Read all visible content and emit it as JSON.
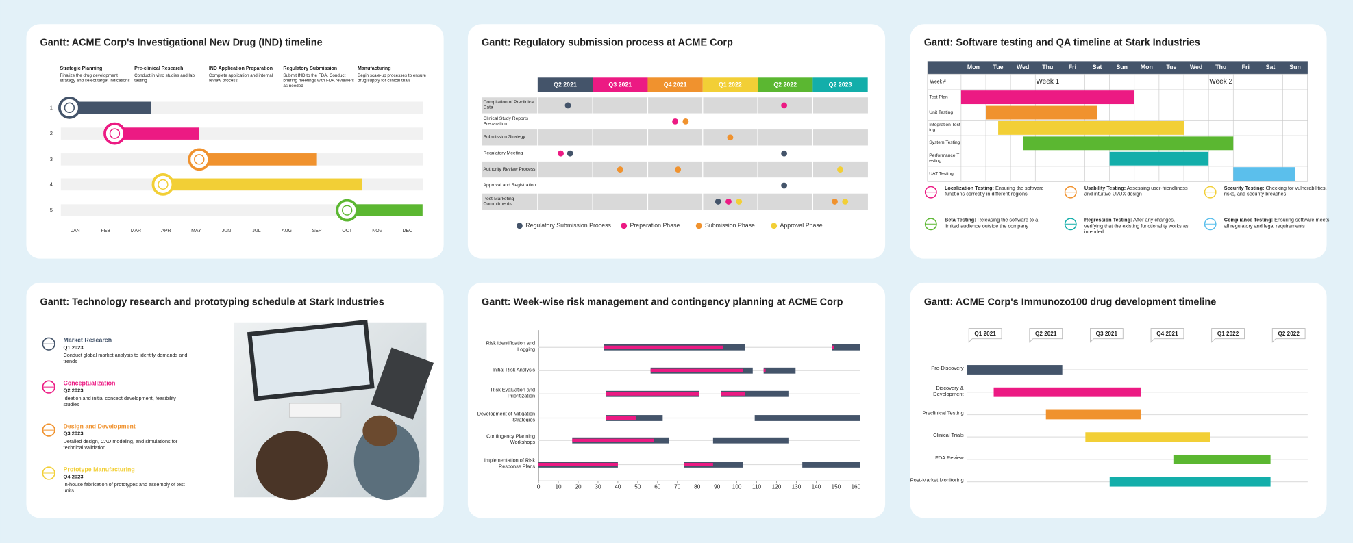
{
  "ind": {
    "title": "Gantt: ACME Corp's Investigational New Drug (IND) timeline",
    "phases": [
      {
        "title": "Strategic Planning",
        "desc": "Finalize the drug development strategy and select target indications"
      },
      {
        "title": "Pre-clinical Research",
        "desc": "Conduct in vitro studies and lab testing"
      },
      {
        "title": "IND Application Preparation",
        "desc": "Complete application and internal review process"
      },
      {
        "title": "Regulatory Submission",
        "desc": "Submit IND to the FDA. Conduct briefing meetings with FDA reviewers as needed"
      },
      {
        "title": "Manufacturing",
        "desc": "Begin scale-up processes to ensure drug supply for clinical trials"
      }
    ],
    "rows": [
      1,
      2,
      3,
      4,
      5
    ],
    "months": [
      "JAN",
      "FEB",
      "MAR",
      "APR",
      "MAY",
      "JUN",
      "JUL",
      "AUG",
      "SEP",
      "OCT",
      "NOV",
      "DEC"
    ],
    "bars": [
      {
        "start": -0.2,
        "end": 2.5
      },
      {
        "start": 1.3,
        "end": 4.1
      },
      {
        "start": 4.1,
        "end": 8
      },
      {
        "start": 2.9,
        "end": 9.5
      },
      {
        "start": 9,
        "end": 11.5
      }
    ],
    "colors": [
      "#44546a",
      "#ec1a83",
      "#f0922e",
      "#f2cf36",
      "#5bb731"
    ]
  },
  "regulatory": {
    "title": "Gantt: Regulatory submission process at ACME Corp",
    "quarters": [
      "Q2 2021",
      "Q3 2021",
      "Q4 2021",
      "Q1 2022",
      "Q2 2022",
      "Q2 2023"
    ],
    "quarter_colors": [
      "#44546a",
      "#ec1a83",
      "#f0922e",
      "#f2cf36",
      "#5bb731",
      "#13aeaa"
    ],
    "tasks": [
      "Compilation of Preclinical Data",
      "Clinical Study Reports Preparation",
      "Submission Strategy",
      "Regulatory Meeting",
      "Authority Review Process",
      "Approval and Registration",
      "Post-Marketing Commitments"
    ],
    "series": [
      {
        "name": "Regulatory Submission Process",
        "color": "#44546a",
        "values": [
          [
            0.55
          ],
          [],
          [],
          [
            0.59,
            4.48
          ],
          [],
          [
            4.48
          ],
          [
            3.28
          ]
        ]
      },
      {
        "name": "Preparation Phase",
        "color": "#ec1a83",
        "values": [
          [
            4.48
          ],
          [
            2.5
          ],
          [],
          [
            0.42
          ],
          [],
          [],
          [
            3.47
          ]
        ]
      },
      {
        "name": "Submission Phase",
        "color": "#f0922e",
        "values": [
          [],
          [
            2.69
          ],
          [
            3.5
          ],
          [],
          [
            1.5,
            2.55
          ],
          [],
          [
            5.4
          ]
        ]
      },
      {
        "name": "Approval Phase",
        "color": "#f2cf36",
        "values": [
          [],
          [],
          [],
          [],
          [
            5.5
          ],
          [],
          [
            3.66,
            5.59
          ]
        ]
      }
    ]
  },
  "testing": {
    "title": "Gantt: Software testing and QA timeline at Stark Industries",
    "days": [
      "Mon",
      "Tue",
      "Wed",
      "Thu",
      "Fri",
      "Sat",
      "Sun",
      "Mon",
      "Tue",
      "Wed",
      "Thu",
      "Fri",
      "Sat",
      "Sun"
    ],
    "week_label": "Week #",
    "weeks": [
      "Week 1",
      "Week 2"
    ],
    "tasks": [
      "Test Plan",
      "Unit Testing",
      "Integration Testing",
      "System Testing",
      "Performance Testing",
      "UAT Testing"
    ],
    "bars": [
      {
        "start": 0,
        "end": 7
      },
      {
        "start": 1,
        "end": 5.5
      },
      {
        "start": 1.5,
        "end": 9
      },
      {
        "start": 2.5,
        "end": 11
      },
      {
        "start": 6,
        "end": 10
      },
      {
        "start": 11,
        "end": 13.5
      }
    ],
    "colors": [
      "#ec1a83",
      "#f0922e",
      "#f2cf36",
      "#5bb731",
      "#13aeaa",
      "#5bbfec"
    ],
    "legend": [
      {
        "title": "Localization Testing:",
        "desc": "Ensuring the software functions correctly in different regions",
        "color": "#ec1a83"
      },
      {
        "title": "Usability Testing:",
        "desc": "Assessing user-friendliness and intuitive UI/UX design",
        "color": "#f0922e"
      },
      {
        "title": "Security Testing:",
        "desc": "Checking for vulnerabilities, risks, and security breaches",
        "color": "#f2cf36"
      },
      {
        "title": "Beta Testing:",
        "desc": "Releasing the software to a limited audience outside the company",
        "color": "#5bb731"
      },
      {
        "title": "Regression Testing:",
        "desc": "After any changes, verifying that the existing functionality works as intended",
        "color": "#13aeaa"
      },
      {
        "title": "Compliance Testing:",
        "desc": "Ensuring software meets all regulatory and legal requirements",
        "color": "#5bbfec"
      }
    ]
  },
  "research": {
    "title": "Gantt: Technology research and prototyping schedule at Stark Industries",
    "items": [
      {
        "title": "Market Research",
        "quarter": "Q1 2023",
        "desc": "Conduct global market analysis to identify demands and trends",
        "color": "#44546a"
      },
      {
        "title": "Conceptualization",
        "quarter": "Q2 2023",
        "desc": "Ideation and initial concept development, feasibility studies",
        "color": "#ec1a83"
      },
      {
        "title": "Design and Development",
        "quarter": "Q3 2023",
        "desc": "Detailed design, CAD modeling, and simulations for technical validation",
        "color": "#f0922e"
      },
      {
        "title": "Prototype Manufacturing",
        "quarter": "Q4 2023",
        "desc": "In-house fabrication of prototypes and assembly of test units",
        "color": "#f2cf36"
      }
    ]
  },
  "risk": {
    "title": "Gantt: Week-wise risk management and contingency planning at ACME Corp",
    "tasks": [
      "Risk Identification and Logging",
      "Initial Risk Analysis",
      "Risk Evaluation and Prioritization",
      "Development of Mitigation Strategies",
      "Contingency Planning Workshops",
      "Implementation of Risk Response Plans"
    ],
    "xlim": [
      0,
      160
    ],
    "xticks": [
      0,
      10,
      20,
      30,
      40,
      50,
      60,
      70,
      80,
      90,
      100,
      110,
      120,
      130,
      140,
      150,
      160
    ],
    "segments": [
      [
        {
          "start": 33,
          "progress": 93,
          "end": 104
        },
        {
          "start": 148,
          "progress": 149,
          "end": 162
        }
      ],
      [
        {
          "start": 56.5,
          "progress": 103,
          "end": 108
        },
        {
          "start": 113.5,
          "progress": 114.5,
          "end": 129.6
        }
      ],
      [
        {
          "start": 34,
          "progress": 81,
          "end": 81
        },
        {
          "start": 92,
          "progress": 104,
          "end": 126
        }
      ],
      [
        {
          "start": 34,
          "progress": 49,
          "end": 62.6
        },
        {
          "start": 109,
          "progress": 109,
          "end": 162
        }
      ],
      [
        {
          "start": 17,
          "progress": 58,
          "end": 65.6
        },
        {
          "start": 88,
          "progress": 88,
          "end": 126
        }
      ],
      [
        {
          "start": 0,
          "progress": 40,
          "end": 40
        },
        {
          "start": 73.5,
          "progress": 88,
          "end": 103
        },
        {
          "start": 133,
          "progress": 133,
          "end": 162
        }
      ]
    ],
    "colors": {
      "bar": "#44546a",
      "progress": "#ec1a83"
    }
  },
  "immunozo": {
    "title": "Gantt: ACME Corp's Immunozo100 drug development timeline",
    "quarters": [
      "Q1 2021",
      "Q2 2021",
      "Q3 2021",
      "Q4 2021",
      "Q1 2022",
      "Q2 2022"
    ],
    "tasks": [
      "Pre-Discovery",
      "Discovery & Development",
      "Preclinical Testing",
      "Clinical Trials",
      "FDA Review",
      "Post-Market Monitoring"
    ],
    "bars": [
      {
        "start": -0.3,
        "end": 1.27
      },
      {
        "start": 0.14,
        "end": 2.56
      },
      {
        "start": 1,
        "end": 2.56
      },
      {
        "start": 1.65,
        "end": 3.7
      },
      {
        "start": 3.1,
        "end": 4.7
      },
      {
        "start": 2.05,
        "end": 4.7
      }
    ],
    "colors": [
      "#44546a",
      "#ec1a83",
      "#f0922e",
      "#f2cf36",
      "#5bb731",
      "#13aeaa"
    ]
  }
}
